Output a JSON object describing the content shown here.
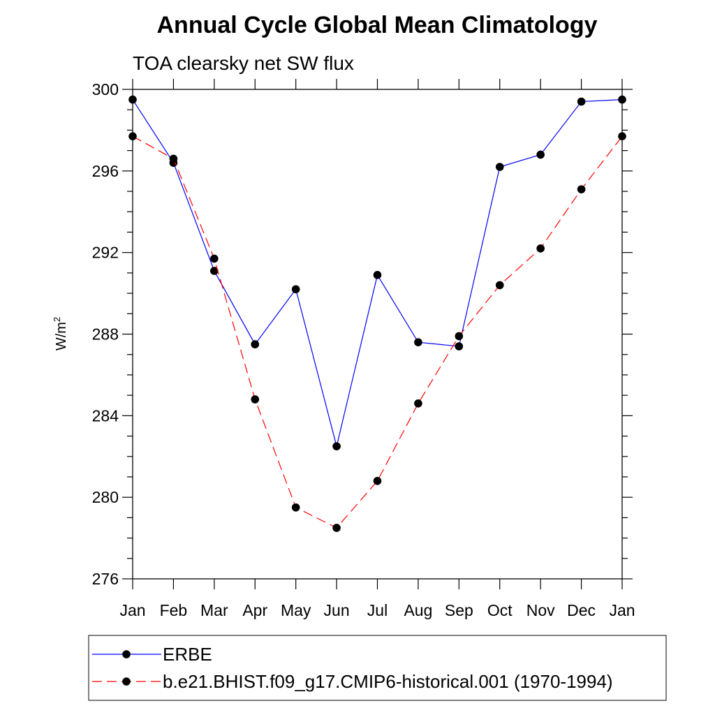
{
  "chart_data": {
    "type": "line",
    "title": "Annual Cycle Global Mean Climatology",
    "subtitle": "TOA clearsky net SW flux",
    "ylabel_base": "W/m",
    "ylabel_sup": "2",
    "categories": [
      "Jan",
      "Feb",
      "Mar",
      "Apr",
      "May",
      "Jun",
      "Jul",
      "Aug",
      "Sep",
      "Oct",
      "Nov",
      "Dec",
      "Jan"
    ],
    "ylim": [
      276,
      300
    ],
    "yticks": [
      276,
      280,
      284,
      288,
      292,
      296,
      300
    ],
    "legend_placement": "bottom",
    "series": [
      {
        "name": "ERBE",
        "color": "#0000ff",
        "dash": "solid",
        "values": [
          299.5,
          296.4,
          291.1,
          287.5,
          290.2,
          282.5,
          290.9,
          287.6,
          287.4,
          296.2,
          296.8,
          299.4,
          299.5
        ]
      },
      {
        "name": "b.e21.BHIST.f09_g17.CMIP6-historical.001 (1970-1994)",
        "color": "#ff0000",
        "dash": "dashed",
        "values": [
          297.7,
          296.6,
          291.7,
          284.8,
          279.5,
          278.5,
          280.8,
          284.6,
          287.9,
          290.4,
          292.2,
          295.1,
          297.7
        ]
      }
    ]
  }
}
